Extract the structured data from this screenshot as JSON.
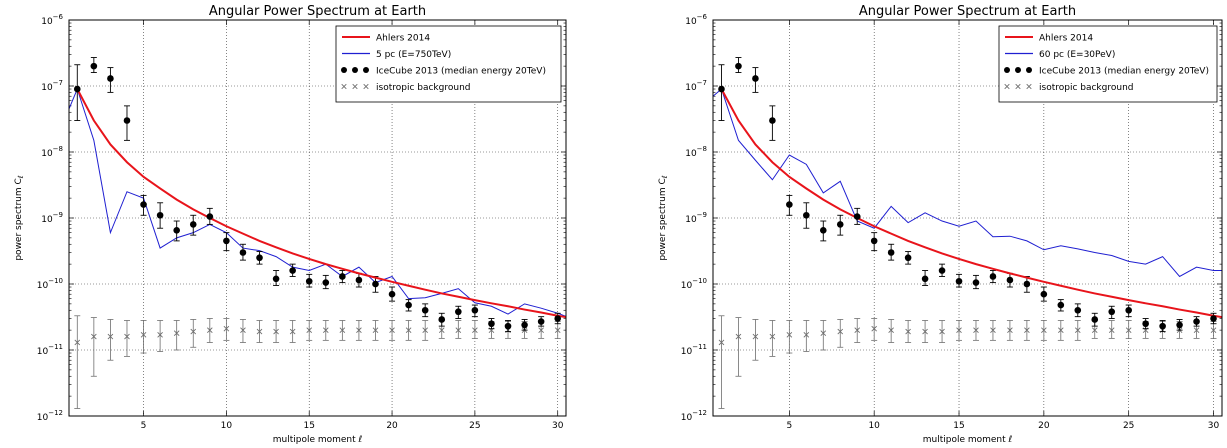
{
  "chart_data": [
    {
      "type": "line",
      "title": "Angular Power Spectrum at Earth",
      "xlabel": "multipole moment ℓ",
      "ylabel": "power spectrum C_ℓ",
      "xlim": [
        0.5,
        30.5
      ],
      "ylim_log10": [
        -12,
        -6
      ],
      "yscale": "log",
      "grid": true,
      "legend_position": "top-right",
      "xticks": [
        "5",
        "10",
        "15",
        "20",
        "25",
        "30"
      ],
      "yticks": [
        {
          "base": "10",
          "exp": "−6"
        },
        {
          "base": "10",
          "exp": "−7"
        },
        {
          "base": "10",
          "exp": "−8"
        },
        {
          "base": "10",
          "exp": "−9"
        },
        {
          "base": "10",
          "exp": "−10"
        },
        {
          "base": "10",
          "exp": "−11"
        },
        {
          "base": "10",
          "exp": "−12"
        }
      ],
      "legend": [
        {
          "label": "Ahlers 2014",
          "marker": "line",
          "color": "#e8141b"
        },
        {
          "label": "5 pc (E=750TeV)",
          "marker": "line",
          "color": "#1f1fd1"
        },
        {
          "label": "IceCube 2013 (median energy 20TeV)",
          "marker": "dots",
          "color": "#000000"
        },
        {
          "label": "isotropic background",
          "marker": "cross",
          "color": "#6e6e6e"
        }
      ],
      "series": [
        {
          "name": "Ahlers 2014",
          "color": "#e8141b",
          "x": [
            1,
            2,
            3,
            4,
            5,
            6,
            7,
            8,
            9,
            10,
            11,
            12,
            13,
            14,
            15,
            16,
            17,
            18,
            19,
            20,
            21,
            22,
            23,
            24,
            25,
            26,
            27,
            28,
            29,
            30,
            31
          ],
          "y": [
            9e-08,
            3e-08,
            1.3e-08,
            7e-09,
            4.2e-09,
            2.8e-09,
            1.9e-09,
            1.35e-09,
            1e-09,
            7.5e-10,
            5.8e-10,
            4.5e-10,
            3.6e-10,
            2.9e-10,
            2.4e-10,
            2e-10,
            1.7e-10,
            1.45e-10,
            1.25e-10,
            1.08e-10,
            9.4e-11,
            8.2e-11,
            7.2e-11,
            6.4e-11,
            5.7e-11,
            5.1e-11,
            4.6e-11,
            4.1e-11,
            3.7e-11,
            3.3e-11,
            3e-11
          ]
        },
        {
          "name": "5 pc (E=750TeV)",
          "color": "#1f1fd1",
          "x": [
            0.5,
            1,
            2,
            3,
            4,
            5,
            6,
            7,
            8,
            9,
            10,
            11,
            12,
            13,
            14,
            15,
            16,
            17,
            18,
            19,
            20,
            21,
            22,
            23,
            24,
            25,
            26,
            27,
            28,
            29,
            30,
            31
          ],
          "y": [
            4.5e-08,
            9e-08,
            1.5e-08,
            6e-10,
            2.5e-09,
            2e-09,
            3.5e-10,
            5e-10,
            6e-10,
            8e-10,
            6e-10,
            3.5e-10,
            3.2e-10,
            2.6e-10,
            1.8e-10,
            1.6e-10,
            2e-10,
            1.3e-10,
            1.8e-10,
            1.05e-10,
            1.3e-10,
            6e-11,
            6.2e-11,
            7.2e-11,
            8.5e-11,
            5.2e-11,
            4.6e-11,
            3.5e-11,
            5e-11,
            4.3e-11,
            3.6e-11,
            2.9e-11
          ]
        },
        {
          "name": "IceCube 2013 (median energy 20TeV)",
          "color": "#000000",
          "x": [
            1,
            2,
            3,
            4,
            5,
            6,
            7,
            8,
            9,
            10,
            11,
            12,
            13,
            14,
            15,
            16,
            17,
            18,
            19,
            20,
            21,
            22,
            23,
            24,
            25,
            26,
            27,
            28,
            29,
            30
          ],
          "y": [
            9e-08,
            2e-07,
            1.3e-07,
            3e-08,
            1.6e-09,
            1.1e-09,
            6.5e-10,
            8e-10,
            1.05e-09,
            4.5e-10,
            3e-10,
            2.5e-10,
            1.2e-10,
            1.6e-10,
            1.1e-10,
            1.05e-10,
            1.3e-10,
            1.15e-10,
            1e-10,
            7e-11,
            4.8e-11,
            4e-11,
            2.9e-11,
            3.8e-11,
            4e-11,
            2.5e-11,
            2.3e-11,
            2.4e-11,
            2.7e-11,
            3e-11
          ],
          "err_lo": [
            3e-08,
            1.6e-07,
            8e-08,
            1.5e-08,
            1.1e-09,
            7e-10,
            4.5e-10,
            5.5e-10,
            8e-10,
            3.2e-10,
            2.3e-10,
            2e-10,
            9.5e-11,
            1.3e-10,
            9e-11,
            8.5e-11,
            1.05e-10,
            9e-11,
            7.5e-11,
            5.5e-11,
            3.9e-11,
            3.2e-11,
            2.3e-11,
            3e-11,
            3.2e-11,
            2.1e-11,
            1.9e-11,
            2e-11,
            2.3e-11,
            2.5e-11
          ],
          "err_hi": [
            2.1e-07,
            2.7e-07,
            1.9e-07,
            5e-08,
            2.2e-09,
            1.7e-09,
            9e-10,
            1.1e-09,
            1.4e-09,
            6e-10,
            4e-10,
            3.1e-10,
            1.6e-10,
            2e-10,
            1.4e-10,
            1.35e-10,
            1.6e-10,
            1.45e-10,
            1.3e-10,
            9e-11,
            5.8e-11,
            5e-11,
            3.6e-11,
            4.6e-11,
            4.8e-11,
            3e-11,
            2.8e-11,
            2.9e-11,
            3.2e-11,
            3.6e-11
          ]
        },
        {
          "name": "isotropic background",
          "color": "#6e6e6e",
          "x": [
            1,
            2,
            3,
            4,
            5,
            6,
            7,
            8,
            9,
            10,
            11,
            12,
            13,
            14,
            15,
            16,
            17,
            18,
            19,
            20,
            21,
            22,
            23,
            24,
            25,
            26,
            27,
            28,
            29,
            30
          ],
          "y": [
            1.3e-11,
            1.6e-11,
            1.6e-11,
            1.6e-11,
            1.7e-11,
            1.7e-11,
            1.8e-11,
            1.9e-11,
            2e-11,
            2.1e-11,
            2e-11,
            1.9e-11,
            1.9e-11,
            1.9e-11,
            2e-11,
            2e-11,
            2e-11,
            2e-11,
            2e-11,
            2e-11,
            2e-11,
            2e-11,
            2e-11,
            2e-11,
            2e-11,
            2e-11,
            2e-11,
            2e-11,
            2e-11,
            2e-11
          ],
          "err_lo": [
            1.3e-12,
            4e-12,
            7e-12,
            8e-12,
            9e-12,
            9.5e-12,
            1e-11,
            1.1e-11,
            1.3e-11,
            1.4e-11,
            1.3e-11,
            1.3e-11,
            1.3e-11,
            1.3e-11,
            1.4e-11,
            1.4e-11,
            1.4e-11,
            1.4e-11,
            1.4e-11,
            1.4e-11,
            1.4e-11,
            1.4e-11,
            1.5e-11,
            1.5e-11,
            1.5e-11,
            1.5e-11,
            1.5e-11,
            1.5e-11,
            1.5e-11,
            1.5e-11
          ],
          "err_hi": [
            3.3e-11,
            3.1e-11,
            2.9e-11,
            2.8e-11,
            2.8e-11,
            2.8e-11,
            2.8e-11,
            2.9e-11,
            3e-11,
            3e-11,
            2.9e-11,
            2.8e-11,
            2.8e-11,
            2.8e-11,
            2.8e-11,
            2.8e-11,
            2.8e-11,
            2.8e-11,
            2.8e-11,
            2.8e-11,
            2.8e-11,
            2.8e-11,
            2.8e-11,
            2.8e-11,
            2.8e-11,
            2.7e-11,
            2.7e-11,
            2.7e-11,
            2.7e-11,
            2.7e-11
          ]
        }
      ]
    },
    {
      "type": "line",
      "title": "Angular Power Spectrum at Earth",
      "xlabel": "multipole moment ℓ",
      "ylabel": "power spectrum C_ℓ",
      "xlim": [
        0.5,
        30.5
      ],
      "ylim_log10": [
        -12,
        -6
      ],
      "yscale": "log",
      "grid": true,
      "legend_position": "top-right",
      "xticks": [
        "5",
        "10",
        "15",
        "20",
        "25",
        "30"
      ],
      "yticks": [
        {
          "base": "10",
          "exp": "−6"
        },
        {
          "base": "10",
          "exp": "−7"
        },
        {
          "base": "10",
          "exp": "−8"
        },
        {
          "base": "10",
          "exp": "−9"
        },
        {
          "base": "10",
          "exp": "−10"
        },
        {
          "base": "10",
          "exp": "−11"
        },
        {
          "base": "10",
          "exp": "−12"
        }
      ],
      "legend": [
        {
          "label": "Ahlers 2014",
          "marker": "line",
          "color": "#e8141b"
        },
        {
          "label": "60 pc (E=30PeV)",
          "marker": "line",
          "color": "#1f1fd1"
        },
        {
          "label": "IceCube 2013 (median energy 20TeV)",
          "marker": "dots",
          "color": "#000000"
        },
        {
          "label": "isotropic background",
          "marker": "cross",
          "color": "#6e6e6e"
        }
      ],
      "series": [
        {
          "name": "Ahlers 2014",
          "color": "#e8141b",
          "x": [
            1,
            2,
            3,
            4,
            5,
            6,
            7,
            8,
            9,
            10,
            11,
            12,
            13,
            14,
            15,
            16,
            17,
            18,
            19,
            20,
            21,
            22,
            23,
            24,
            25,
            26,
            27,
            28,
            29,
            30,
            31
          ],
          "y": [
            9e-08,
            3e-08,
            1.3e-08,
            7e-09,
            4.2e-09,
            2.8e-09,
            1.9e-09,
            1.35e-09,
            1e-09,
            7.5e-10,
            5.8e-10,
            4.5e-10,
            3.6e-10,
            2.9e-10,
            2.4e-10,
            2e-10,
            1.7e-10,
            1.45e-10,
            1.25e-10,
            1.08e-10,
            9.4e-11,
            8.2e-11,
            7.2e-11,
            6.4e-11,
            5.7e-11,
            5.1e-11,
            4.6e-11,
            4.1e-11,
            3.7e-11,
            3.3e-11,
            3e-11
          ]
        },
        {
          "name": "60 pc (E=30PeV)",
          "color": "#1f1fd1",
          "x": [
            0.5,
            1,
            2,
            3,
            4,
            5,
            6,
            7,
            8,
            9,
            10,
            11,
            12,
            13,
            14,
            15,
            16,
            17,
            18,
            19,
            20,
            21,
            22,
            23,
            24,
            25,
            26,
            27,
            28,
            29,
            30,
            31
          ],
          "y": [
            7e-08,
            9e-08,
            1.5e-08,
            7.5e-09,
            3.8e-09,
            9e-09,
            6.5e-09,
            2.4e-09,
            3.6e-09,
            9e-10,
            7e-10,
            1.5e-09,
            8.5e-10,
            1.2e-09,
            9e-10,
            7.5e-10,
            9e-10,
            5.2e-10,
            5.3e-10,
            4.5e-10,
            3.3e-10,
            3.8e-10,
            3.4e-10,
            3e-10,
            2.7e-10,
            2.2e-10,
            2e-10,
            2.6e-10,
            1.3e-10,
            1.8e-10,
            1.6e-10,
            1.6e-10
          ]
        },
        {
          "name": "IceCube 2013 (median energy 20TeV)",
          "color": "#000000",
          "x": [
            1,
            2,
            3,
            4,
            5,
            6,
            7,
            8,
            9,
            10,
            11,
            12,
            13,
            14,
            15,
            16,
            17,
            18,
            19,
            20,
            21,
            22,
            23,
            24,
            25,
            26,
            27,
            28,
            29,
            30
          ],
          "y": [
            9e-08,
            2e-07,
            1.3e-07,
            3e-08,
            1.6e-09,
            1.1e-09,
            6.5e-10,
            8e-10,
            1.05e-09,
            4.5e-10,
            3e-10,
            2.5e-10,
            1.2e-10,
            1.6e-10,
            1.1e-10,
            1.05e-10,
            1.3e-10,
            1.15e-10,
            1e-10,
            7e-11,
            4.8e-11,
            4e-11,
            2.9e-11,
            3.8e-11,
            4e-11,
            2.5e-11,
            2.3e-11,
            2.4e-11,
            2.7e-11,
            3e-11
          ],
          "err_lo": [
            3e-08,
            1.6e-07,
            8e-08,
            1.5e-08,
            1.1e-09,
            7e-10,
            4.5e-10,
            5.5e-10,
            8e-10,
            3.2e-10,
            2.3e-10,
            2e-10,
            9.5e-11,
            1.3e-10,
            9e-11,
            8.5e-11,
            1.05e-10,
            9e-11,
            7.5e-11,
            5.5e-11,
            3.9e-11,
            3.2e-11,
            2.3e-11,
            3e-11,
            3.2e-11,
            2.1e-11,
            1.9e-11,
            2e-11,
            2.3e-11,
            2.5e-11
          ],
          "err_hi": [
            2.1e-07,
            2.7e-07,
            1.9e-07,
            5e-08,
            2.2e-09,
            1.7e-09,
            9e-10,
            1.1e-09,
            1.4e-09,
            6e-10,
            4e-10,
            3.1e-10,
            1.6e-10,
            2e-10,
            1.4e-10,
            1.35e-10,
            1.6e-10,
            1.45e-10,
            1.3e-10,
            9e-11,
            5.8e-11,
            5e-11,
            3.6e-11,
            4.6e-11,
            4.8e-11,
            3e-11,
            2.8e-11,
            2.9e-11,
            3.2e-11,
            3.6e-11
          ]
        },
        {
          "name": "isotropic background",
          "color": "#6e6e6e",
          "x": [
            1,
            2,
            3,
            4,
            5,
            6,
            7,
            8,
            9,
            10,
            11,
            12,
            13,
            14,
            15,
            16,
            17,
            18,
            19,
            20,
            21,
            22,
            23,
            24,
            25,
            26,
            27,
            28,
            29,
            30
          ],
          "y": [
            1.3e-11,
            1.6e-11,
            1.6e-11,
            1.6e-11,
            1.7e-11,
            1.7e-11,
            1.8e-11,
            1.9e-11,
            2e-11,
            2.1e-11,
            2e-11,
            1.9e-11,
            1.9e-11,
            1.9e-11,
            2e-11,
            2e-11,
            2e-11,
            2e-11,
            2e-11,
            2e-11,
            2e-11,
            2e-11,
            2e-11,
            2e-11,
            2e-11,
            2e-11,
            2e-11,
            2e-11,
            2e-11,
            2e-11
          ],
          "err_lo": [
            1.3e-12,
            4e-12,
            7e-12,
            8e-12,
            9e-12,
            9.5e-12,
            1e-11,
            1.1e-11,
            1.3e-11,
            1.4e-11,
            1.3e-11,
            1.3e-11,
            1.3e-11,
            1.3e-11,
            1.4e-11,
            1.4e-11,
            1.4e-11,
            1.4e-11,
            1.4e-11,
            1.4e-11,
            1.4e-11,
            1.4e-11,
            1.5e-11,
            1.5e-11,
            1.5e-11,
            1.5e-11,
            1.5e-11,
            1.5e-11,
            1.5e-11,
            1.5e-11
          ],
          "err_hi": [
            3.3e-11,
            3.1e-11,
            2.9e-11,
            2.8e-11,
            2.8e-11,
            2.8e-11,
            2.8e-11,
            2.9e-11,
            3e-11,
            3e-11,
            2.9e-11,
            2.8e-11,
            2.8e-11,
            2.8e-11,
            2.8e-11,
            2.8e-11,
            2.8e-11,
            2.8e-11,
            2.8e-11,
            2.8e-11,
            2.8e-11,
            2.8e-11,
            2.8e-11,
            2.8e-11,
            2.8e-11,
            2.7e-11,
            2.7e-11,
            2.7e-11,
            2.7e-11,
            2.7e-11
          ]
        }
      ]
    }
  ]
}
